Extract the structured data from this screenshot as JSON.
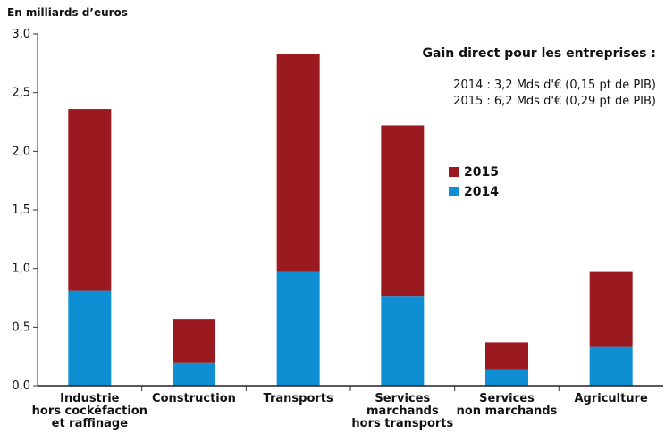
{
  "chart_data": {
    "type": "stacked_bar",
    "ylabel": "En milliards d’euros",
    "categories": [
      "Industrie\nhors cockéfaction\net raffinage",
      "Construction",
      "Transports",
      "Services\nmarchands\nhors transports",
      "Services\nnon marchands",
      "Agriculture"
    ],
    "series": [
      {
        "name": "2014",
        "color": "#0e8fd3",
        "values": [
          0.81,
          0.2,
          0.97,
          0.76,
          0.14,
          0.33
        ]
      },
      {
        "name": "2015",
        "color": "#9a1a1f",
        "values": [
          1.55,
          0.37,
          1.86,
          1.46,
          0.23,
          0.64
        ]
      }
    ],
    "ylim": [
      0,
      3
    ],
    "yticks": [
      {
        "value": 0,
        "label": "0,0"
      },
      {
        "value": 0.5,
        "label": "0,5"
      },
      {
        "value": 1,
        "label": "1,0"
      },
      {
        "value": 1.5,
        "label": "1,5"
      },
      {
        "value": 2,
        "label": "2,0"
      },
      {
        "value": 2.5,
        "label": "2,5"
      },
      {
        "value": 3,
        "label": "3,0"
      }
    ],
    "annotations": [
      {
        "text": "Gain  direct pour les entreprises :",
        "color": "#111111"
      },
      {
        "text": "2014 : 3,2 Mds d'€ (0,15 pt de PIB)",
        "color": "#0e8fd3"
      },
      {
        "text": "2015 : 6,2 Mds d'€ (0,29 pt de PIB)",
        "color": "#9a1a1f"
      }
    ]
  }
}
